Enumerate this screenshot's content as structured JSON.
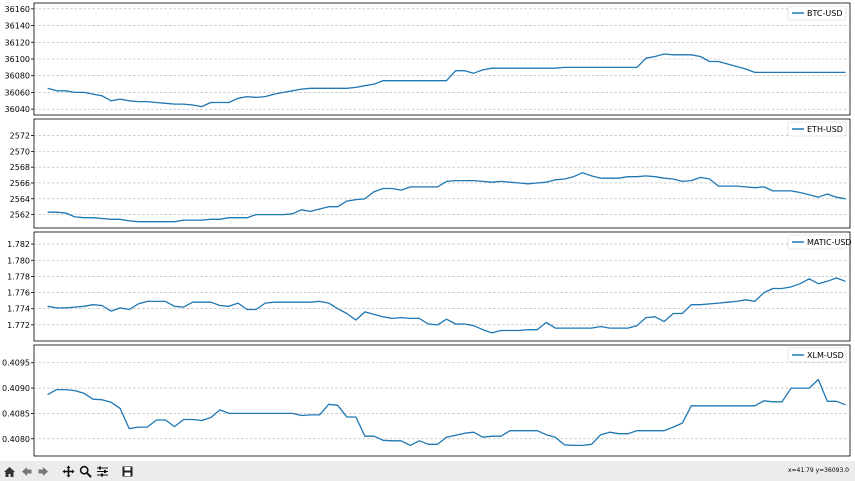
{
  "colors": {
    "line": "#1f77b4",
    "grid": "#b0b0b0",
    "toolbar": "#ececec"
  },
  "toolbar": {
    "buttons": [
      {
        "name": "home-icon",
        "label": "Home"
      },
      {
        "name": "back-icon",
        "label": "Back"
      },
      {
        "name": "forward-icon",
        "label": "Forward"
      },
      {
        "name": "pan-icon",
        "label": "Pan"
      },
      {
        "name": "zoom-icon",
        "label": "Zoom"
      },
      {
        "name": "configure-subplots-icon",
        "label": "Subplots"
      },
      {
        "name": "save-icon",
        "label": "Save"
      }
    ],
    "coords": "x=41.79 y=36093.0"
  },
  "chart_data": [
    {
      "type": "line",
      "legend": "BTC-USD",
      "legend_position": "top-right",
      "grid": true,
      "xlim": [
        -1.5,
        88.5
      ],
      "ylim": [
        36033,
        36167
      ],
      "yticks": [
        36040,
        36060,
        36080,
        36100,
        36120,
        36140,
        36160
      ],
      "ytick_labels": [
        "36040",
        "36060",
        "36080",
        "36100",
        "36120",
        "36140",
        "36160"
      ],
      "values": [
        36065,
        36062,
        36062,
        36060,
        36060,
        36058,
        36056,
        36050,
        36052,
        36050,
        36049,
        36049,
        36048,
        36047,
        36046,
        36046,
        36045,
        36043,
        36048,
        36048,
        36048,
        36053,
        36055,
        36054,
        36055,
        36058,
        36060,
        36062,
        36064,
        36065,
        36065,
        36065,
        36065,
        36065,
        36066,
        36068,
        36070,
        36074,
        36074,
        36074,
        36074,
        36074,
        36074,
        36074,
        36074,
        36086,
        36086,
        36083,
        36087,
        36089,
        36089,
        36089,
        36089,
        36089,
        36089,
        36089,
        36089,
        36090,
        36090,
        36090,
        36090,
        36090,
        36090,
        36090,
        36090,
        36090,
        36101,
        36103,
        36106,
        36105,
        36105,
        36105,
        36103,
        36097,
        36097,
        36094,
        36091,
        36088,
        36084,
        36084,
        36084,
        36084,
        36084,
        36084,
        36084,
        36084,
        36084,
        36084,
        36084
      ]
    },
    {
      "type": "line",
      "legend": "ETH-USD",
      "legend_position": "top-right",
      "grid": true,
      "xlim": [
        -1.5,
        88.5
      ],
      "ylim": [
        2560.3,
        2574.1
      ],
      "yticks": [
        2562,
        2564,
        2566,
        2568,
        2570,
        2572
      ],
      "ytick_labels": [
        "2562",
        "2564",
        "2566",
        "2568",
        "2570",
        "2572"
      ],
      "values": [
        2562.3,
        2562.3,
        2562.2,
        2561.7,
        2561.6,
        2561.6,
        2561.5,
        2561.4,
        2561.4,
        2561.2,
        2561.1,
        2561.1,
        2561.1,
        2561.1,
        2561.1,
        2561.3,
        2561.3,
        2561.3,
        2561.4,
        2561.4,
        2561.6,
        2561.6,
        2561.6,
        2562.0,
        2562.0,
        2562.0,
        2562.0,
        2562.1,
        2562.6,
        2562.4,
        2562.7,
        2563.0,
        2563.0,
        2563.7,
        2563.9,
        2564.0,
        2564.9,
        2565.3,
        2565.3,
        2565.1,
        2565.5,
        2565.5,
        2565.5,
        2565.5,
        2566.2,
        2566.3,
        2566.3,
        2566.3,
        2566.2,
        2566.1,
        2566.2,
        2566.1,
        2566.0,
        2565.9,
        2566.0,
        2566.1,
        2566.4,
        2566.5,
        2566.8,
        2567.3,
        2566.9,
        2566.6,
        2566.6,
        2566.6,
        2566.8,
        2566.8,
        2566.9,
        2566.8,
        2566.6,
        2566.5,
        2566.2,
        2566.3,
        2566.7,
        2566.5,
        2565.6,
        2565.6,
        2565.6,
        2565.5,
        2565.4,
        2565.5,
        2565.0,
        2565.0,
        2565.0,
        2564.8,
        2564.5,
        2564.2,
        2564.6,
        2564.2,
        2564.0
      ]
    },
    {
      "type": "line",
      "legend": "MATIC-USD",
      "legend_position": "top-right",
      "grid": true,
      "xlim": [
        -1.5,
        88.5
      ],
      "ylim": [
        1.77,
        1.7835
      ],
      "yticks": [
        1.772,
        1.774,
        1.776,
        1.778,
        1.78,
        1.782
      ],
      "ytick_labels": [
        "1.772",
        "1.774",
        "1.776",
        "1.778",
        "1.780",
        "1.782"
      ],
      "values": [
        1.7743,
        1.7741,
        1.7741,
        1.7742,
        1.7743,
        1.7745,
        1.7744,
        1.7737,
        1.7741,
        1.7739,
        1.7746,
        1.7749,
        1.7749,
        1.7749,
        1.7743,
        1.7742,
        1.7748,
        1.7748,
        1.7748,
        1.7744,
        1.7743,
        1.7747,
        1.7739,
        1.7739,
        1.7747,
        1.7748,
        1.7748,
        1.7748,
        1.7748,
        1.7748,
        1.7749,
        1.7747,
        1.774,
        1.7734,
        1.7726,
        1.7736,
        1.7733,
        1.773,
        1.7728,
        1.7729,
        1.7728,
        1.7728,
        1.7721,
        1.772,
        1.7727,
        1.7721,
        1.7721,
        1.7719,
        1.7714,
        1.771,
        1.7713,
        1.7713,
        1.7713,
        1.7714,
        1.7714,
        1.7723,
        1.7716,
        1.7716,
        1.7716,
        1.7716,
        1.7716,
        1.7718,
        1.7716,
        1.7716,
        1.7716,
        1.7719,
        1.7729,
        1.773,
        1.7724,
        1.7734,
        1.7734,
        1.7745,
        1.7745,
        1.7746,
        1.7747,
        1.7748,
        1.7749,
        1.7751,
        1.7749,
        1.776,
        1.7765,
        1.7765,
        1.7767,
        1.7771,
        1.7777,
        1.7771,
        1.7774,
        1.7778,
        1.7774
      ]
    },
    {
      "type": "line",
      "legend": "XLM-USD",
      "legend_position": "top-right",
      "grid": true,
      "xlim": [
        -1.5,
        88.5
      ],
      "ylim": [
        0.40766,
        0.40985
      ],
      "yticks": [
        0.408,
        0.4085,
        0.409,
        0.4095
      ],
      "ytick_labels": [
        "0.4080",
        "0.4085",
        "0.4090",
        "0.4095"
      ],
      "values": [
        0.40887,
        0.40897,
        0.40897,
        0.40895,
        0.4089,
        0.40878,
        0.40877,
        0.40872,
        0.4086,
        0.4082,
        0.40823,
        0.40823,
        0.40837,
        0.40837,
        0.40824,
        0.40838,
        0.40838,
        0.40836,
        0.40842,
        0.40857,
        0.4085,
        0.4085,
        0.4085,
        0.4085,
        0.4085,
        0.4085,
        0.4085,
        0.4085,
        0.40846,
        0.40847,
        0.40847,
        0.40868,
        0.40866,
        0.40843,
        0.40843,
        0.40805,
        0.40805,
        0.40797,
        0.40796,
        0.40796,
        0.40787,
        0.40796,
        0.40789,
        0.40789,
        0.40803,
        0.40807,
        0.40811,
        0.40813,
        0.40803,
        0.40805,
        0.40805,
        0.40816,
        0.40816,
        0.40816,
        0.40816,
        0.40808,
        0.40803,
        0.40788,
        0.40787,
        0.40787,
        0.40789,
        0.40808,
        0.40813,
        0.4081,
        0.4081,
        0.40816,
        0.40816,
        0.40816,
        0.40816,
        0.40823,
        0.40831,
        0.40865,
        0.40865,
        0.40865,
        0.40865,
        0.40865,
        0.40865,
        0.40865,
        0.40865,
        0.40875,
        0.40873,
        0.40873,
        0.409,
        0.409,
        0.409,
        0.40917,
        0.40874,
        0.40874,
        0.40867
      ]
    }
  ]
}
